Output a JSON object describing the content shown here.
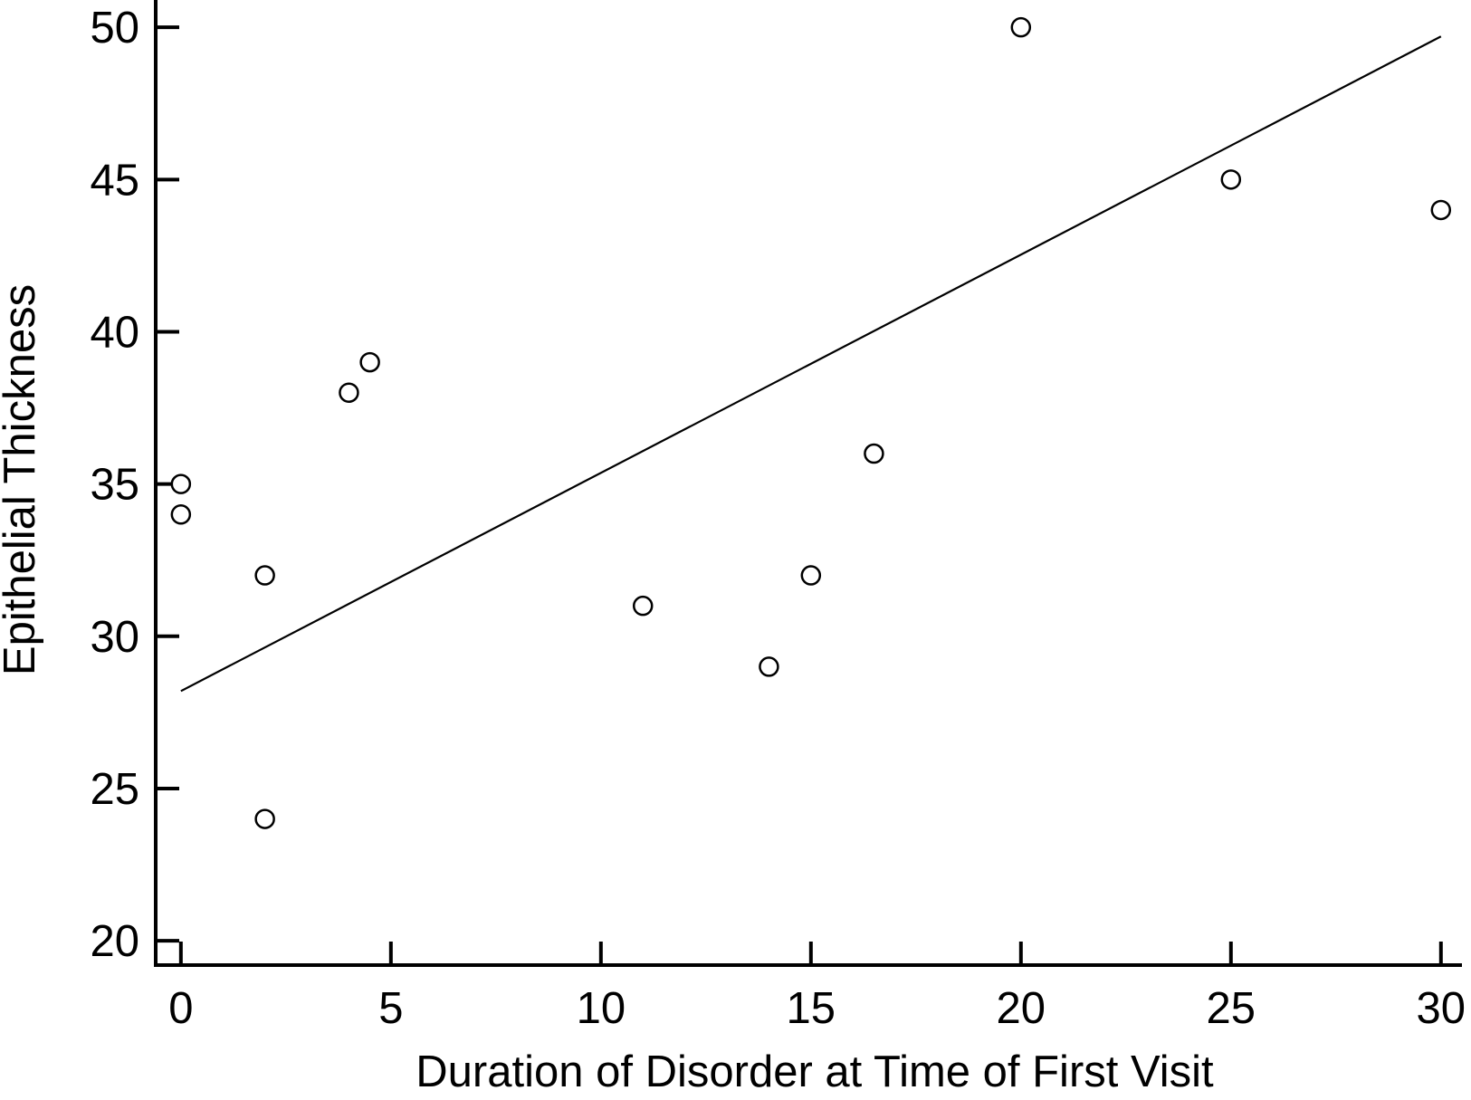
{
  "chart_data": {
    "type": "scatter",
    "xlabel": "Duration of Disorder at Time of First Visit",
    "ylabel": "Epithelial Thickness",
    "xlim": [
      -0.6,
      30.5
    ],
    "ylim": [
      19.2,
      50.6
    ],
    "xticks": [
      0,
      5,
      10,
      15,
      20,
      25,
      30
    ],
    "yticks": [
      20,
      25,
      30,
      35,
      40,
      45,
      50
    ],
    "grid": false,
    "legend": "none",
    "marker": "open-circle",
    "points": [
      {
        "x": 0,
        "y": 35
      },
      {
        "x": 0,
        "y": 34
      },
      {
        "x": 2,
        "y": 32
      },
      {
        "x": 2,
        "y": 24
      },
      {
        "x": 4,
        "y": 38
      },
      {
        "x": 4.5,
        "y": 39
      },
      {
        "x": 11,
        "y": 31
      },
      {
        "x": 14,
        "y": 29
      },
      {
        "x": 15,
        "y": 32
      },
      {
        "x": 16.5,
        "y": 36
      },
      {
        "x": 20,
        "y": 50
      },
      {
        "x": 25,
        "y": 45
      },
      {
        "x": 30,
        "y": 44
      }
    ],
    "fit_line": {
      "x": [
        0,
        30
      ],
      "y": [
        28.2,
        49.7
      ]
    }
  }
}
